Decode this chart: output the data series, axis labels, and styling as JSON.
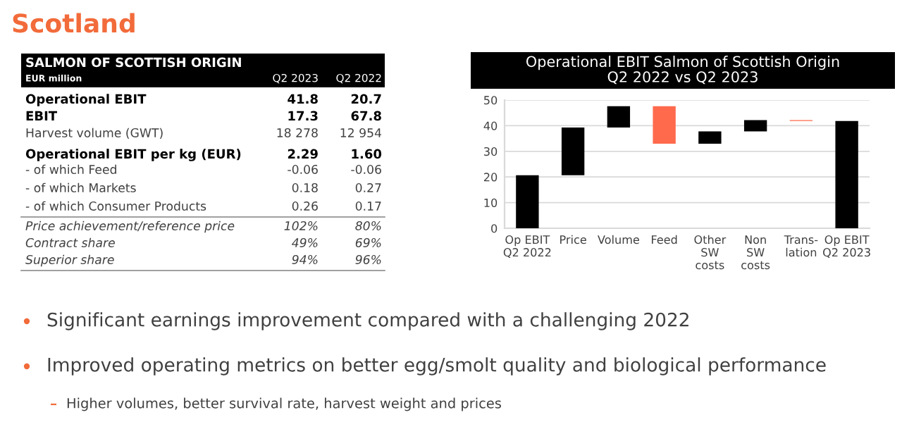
{
  "chart_data": [
    {
      "type": "other",
      "title": "SALMON OF SCOTTISH ORIGIN",
      "subtitle": "EUR million",
      "categories": [
        "Q2 2023",
        "Q2 2022"
      ],
      "y_categories": [
        "Operational EBIT",
        "EBIT",
        "Harvest volume (GWT)",
        "Operational EBIT per kg (EUR)",
        "- of which Feed",
        "- of which Markets",
        "- of which Consumer Products",
        "Price achievement/reference price",
        "Contract share",
        "Superior share"
      ],
      "cell_labels": [
        [
          "41.8",
          "20.7"
        ],
        [
          "17.3",
          "67.8"
        ],
        [
          "18 278",
          "12 954"
        ],
        [
          "2.29",
          "1.60"
        ],
        [
          "-0.06",
          "-0.06"
        ],
        [
          "0.18",
          "0.27"
        ],
        [
          "0.26",
          "0.17"
        ],
        [
          "102%",
          "80%"
        ],
        [
          "49%",
          "69%"
        ],
        [
          "94%",
          "96%"
        ]
      ],
      "annotations": [
        "Scotland",
        "Significant earnings improvement compared with a challenging 2022",
        "Improved operating metrics on better egg/smolt quality and biological performance",
        "Higher volumes, better survival rate, harvest weight and prices"
      ]
    },
    {
      "type": "bar",
      "title": "Operational EBIT Salmon of Scottish Origin\nQ2 2022 vs Q2 2023",
      "categories": [
        "Op EBIT\nQ2 2022",
        "Price",
        "Volume",
        "Feed",
        "Other\nSW\ncosts",
        "Non\nSW\ncosts",
        "Trans-\nlation",
        "Op EBIT\nQ2 2023"
      ],
      "values": [
        20.7,
        18.6,
        8.3,
        -14.6,
        4.8,
        4.4,
        -0.4,
        41.8
      ],
      "base": [
        0,
        20.7,
        39.3,
        47.6,
        33.0,
        37.8,
        42.2,
        0
      ],
      "colors": [
        "#000000",
        "#000000",
        "#000000",
        "#ff6a4d",
        "#000000",
        "#000000",
        "#ff6a4d",
        "#000000"
      ],
      "ylim": [
        0,
        50
      ],
      "yticks": [
        0,
        10,
        20,
        30,
        40,
        50
      ],
      "grid": "y",
      "legend": false
    }
  ]
}
